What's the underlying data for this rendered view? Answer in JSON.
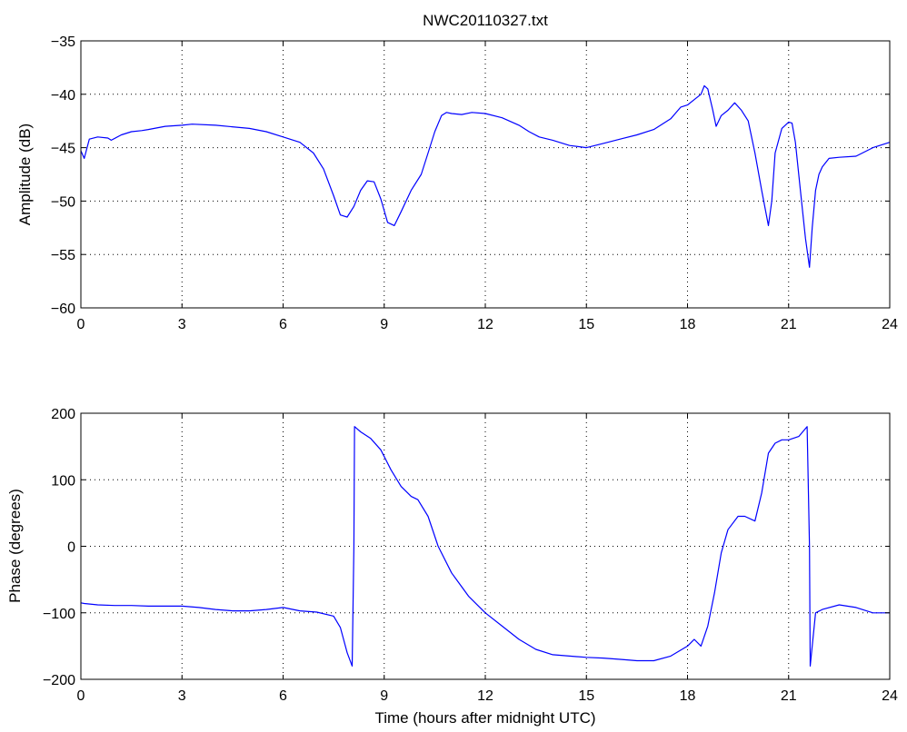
{
  "chart_data": [
    {
      "type": "line",
      "title": "NWC20110327.txt",
      "xlabel": "",
      "ylabel": "Amplitude (dB)",
      "xlim": [
        0,
        24
      ],
      "ylim": [
        -60,
        -35
      ],
      "xticks": [
        0,
        3,
        6,
        9,
        12,
        15,
        18,
        21,
        24
      ],
      "yticks": [
        -60,
        -55,
        -50,
        -45,
        -40,
        -35
      ],
      "grid": true,
      "series": [
        {
          "name": "",
          "color": "#0000ff",
          "x": [
            0,
            0.1,
            0.25,
            0.5,
            0.8,
            0.9,
            1.2,
            1.5,
            1.8,
            2.0,
            2.5,
            3.0,
            3.3,
            4.0,
            5.0,
            5.5,
            6.0,
            6.5,
            6.9,
            7.2,
            7.5,
            7.7,
            7.9,
            8.1,
            8.3,
            8.5,
            8.7,
            8.9,
            9.1,
            9.3,
            9.5,
            9.8,
            10.1,
            10.3,
            10.5,
            10.7,
            10.85,
            11.0,
            11.3,
            11.6,
            12.0,
            12.5,
            13.0,
            13.3,
            13.6,
            14.0,
            14.5,
            15.0,
            15.5,
            16.0,
            16.5,
            17.0,
            17.5,
            17.8,
            18.0,
            18.2,
            18.4,
            18.5,
            18.6,
            18.75,
            18.85,
            19.0,
            19.2,
            19.4,
            19.6,
            19.8,
            20.0,
            20.2,
            20.4,
            20.5,
            20.6,
            20.8,
            21.0,
            21.1,
            21.2,
            21.35,
            21.5,
            21.62,
            21.7,
            21.8,
            21.9,
            22.0,
            22.2,
            22.5,
            23.0,
            23.5,
            24.0
          ],
          "values": [
            -45.3,
            -46.0,
            -44.2,
            -44.0,
            -44.1,
            -44.3,
            -43.8,
            -43.5,
            -43.4,
            -43.3,
            -43.0,
            -42.9,
            -42.8,
            -42.9,
            -43.2,
            -43.5,
            -44.0,
            -44.5,
            -45.5,
            -47.0,
            -49.5,
            -51.3,
            -51.5,
            -50.5,
            -49.0,
            -48.1,
            -48.2,
            -49.8,
            -52.0,
            -52.3,
            -51.0,
            -49.0,
            -47.5,
            -45.5,
            -43.5,
            -42.0,
            -41.7,
            -41.8,
            -41.9,
            -41.7,
            -41.8,
            -42.2,
            -42.9,
            -43.5,
            -44.0,
            -44.3,
            -44.8,
            -45.0,
            -44.6,
            -44.2,
            -43.8,
            -43.3,
            -42.3,
            -41.2,
            -41.0,
            -40.5,
            -40.0,
            -39.2,
            -39.5,
            -41.5,
            -43.0,
            -42.0,
            -41.5,
            -40.8,
            -41.5,
            -42.5,
            -45.5,
            -49.0,
            -52.3,
            -50.0,
            -45.5,
            -43.2,
            -42.6,
            -42.7,
            -44.5,
            -49.0,
            -53.5,
            -56.2,
            -52.5,
            -49.0,
            -47.5,
            -46.8,
            -46.0,
            -45.9,
            -45.8,
            -45.0,
            -44.5
          ]
        }
      ]
    },
    {
      "type": "line",
      "title": "",
      "xlabel": "Time (hours after midnight UTC)",
      "ylabel": "Phase (degrees)",
      "xlim": [
        0,
        24
      ],
      "ylim": [
        -200,
        200
      ],
      "xticks": [
        0,
        3,
        6,
        9,
        12,
        15,
        18,
        21,
        24
      ],
      "yticks": [
        -200,
        -100,
        0,
        100,
        200
      ],
      "grid": true,
      "series": [
        {
          "name": "",
          "color": "#0000ff",
          "x": [
            0,
            0.1,
            0.5,
            1.0,
            1.5,
            2.0,
            2.5,
            3.0,
            3.5,
            4.0,
            4.5,
            5.0,
            5.5,
            6.0,
            6.5,
            7.0,
            7.5,
            7.7,
            7.9,
            8.05,
            8.1,
            8.12,
            8.3,
            8.6,
            8.9,
            9.2,
            9.5,
            9.8,
            10.0,
            10.3,
            10.6,
            11.0,
            11.5,
            12.0,
            12.5,
            13.0,
            13.5,
            14.0,
            14.5,
            15.0,
            15.5,
            16.0,
            16.5,
            17.0,
            17.5,
            18.0,
            18.2,
            18.4,
            18.6,
            18.8,
            19.0,
            19.2,
            19.5,
            19.7,
            20.0,
            20.2,
            20.4,
            20.6,
            20.8,
            21.0,
            21.3,
            21.55,
            21.62,
            21.64,
            21.7,
            21.8,
            22.0,
            22.5,
            23.0,
            23.5,
            24.0
          ],
          "values": [
            -85,
            -86,
            -88,
            -89,
            -89,
            -90,
            -90,
            -90,
            -92,
            -95,
            -97,
            -97,
            -95,
            -92,
            -97,
            -99,
            -105,
            -122,
            -160,
            -180,
            0,
            180,
            172,
            162,
            145,
            115,
            90,
            75,
            70,
            45,
            0,
            -40,
            -75,
            -100,
            -120,
            -140,
            -155,
            -163,
            -165,
            -167,
            -168,
            -170,
            -172,
            -172,
            -165,
            -150,
            -140,
            -150,
            -120,
            -70,
            -10,
            25,
            45,
            45,
            38,
            80,
            140,
            155,
            160,
            160,
            165,
            180,
            0,
            -180,
            -150,
            -100,
            -95,
            -88,
            -92,
            -100,
            -100
          ]
        }
      ]
    }
  ]
}
